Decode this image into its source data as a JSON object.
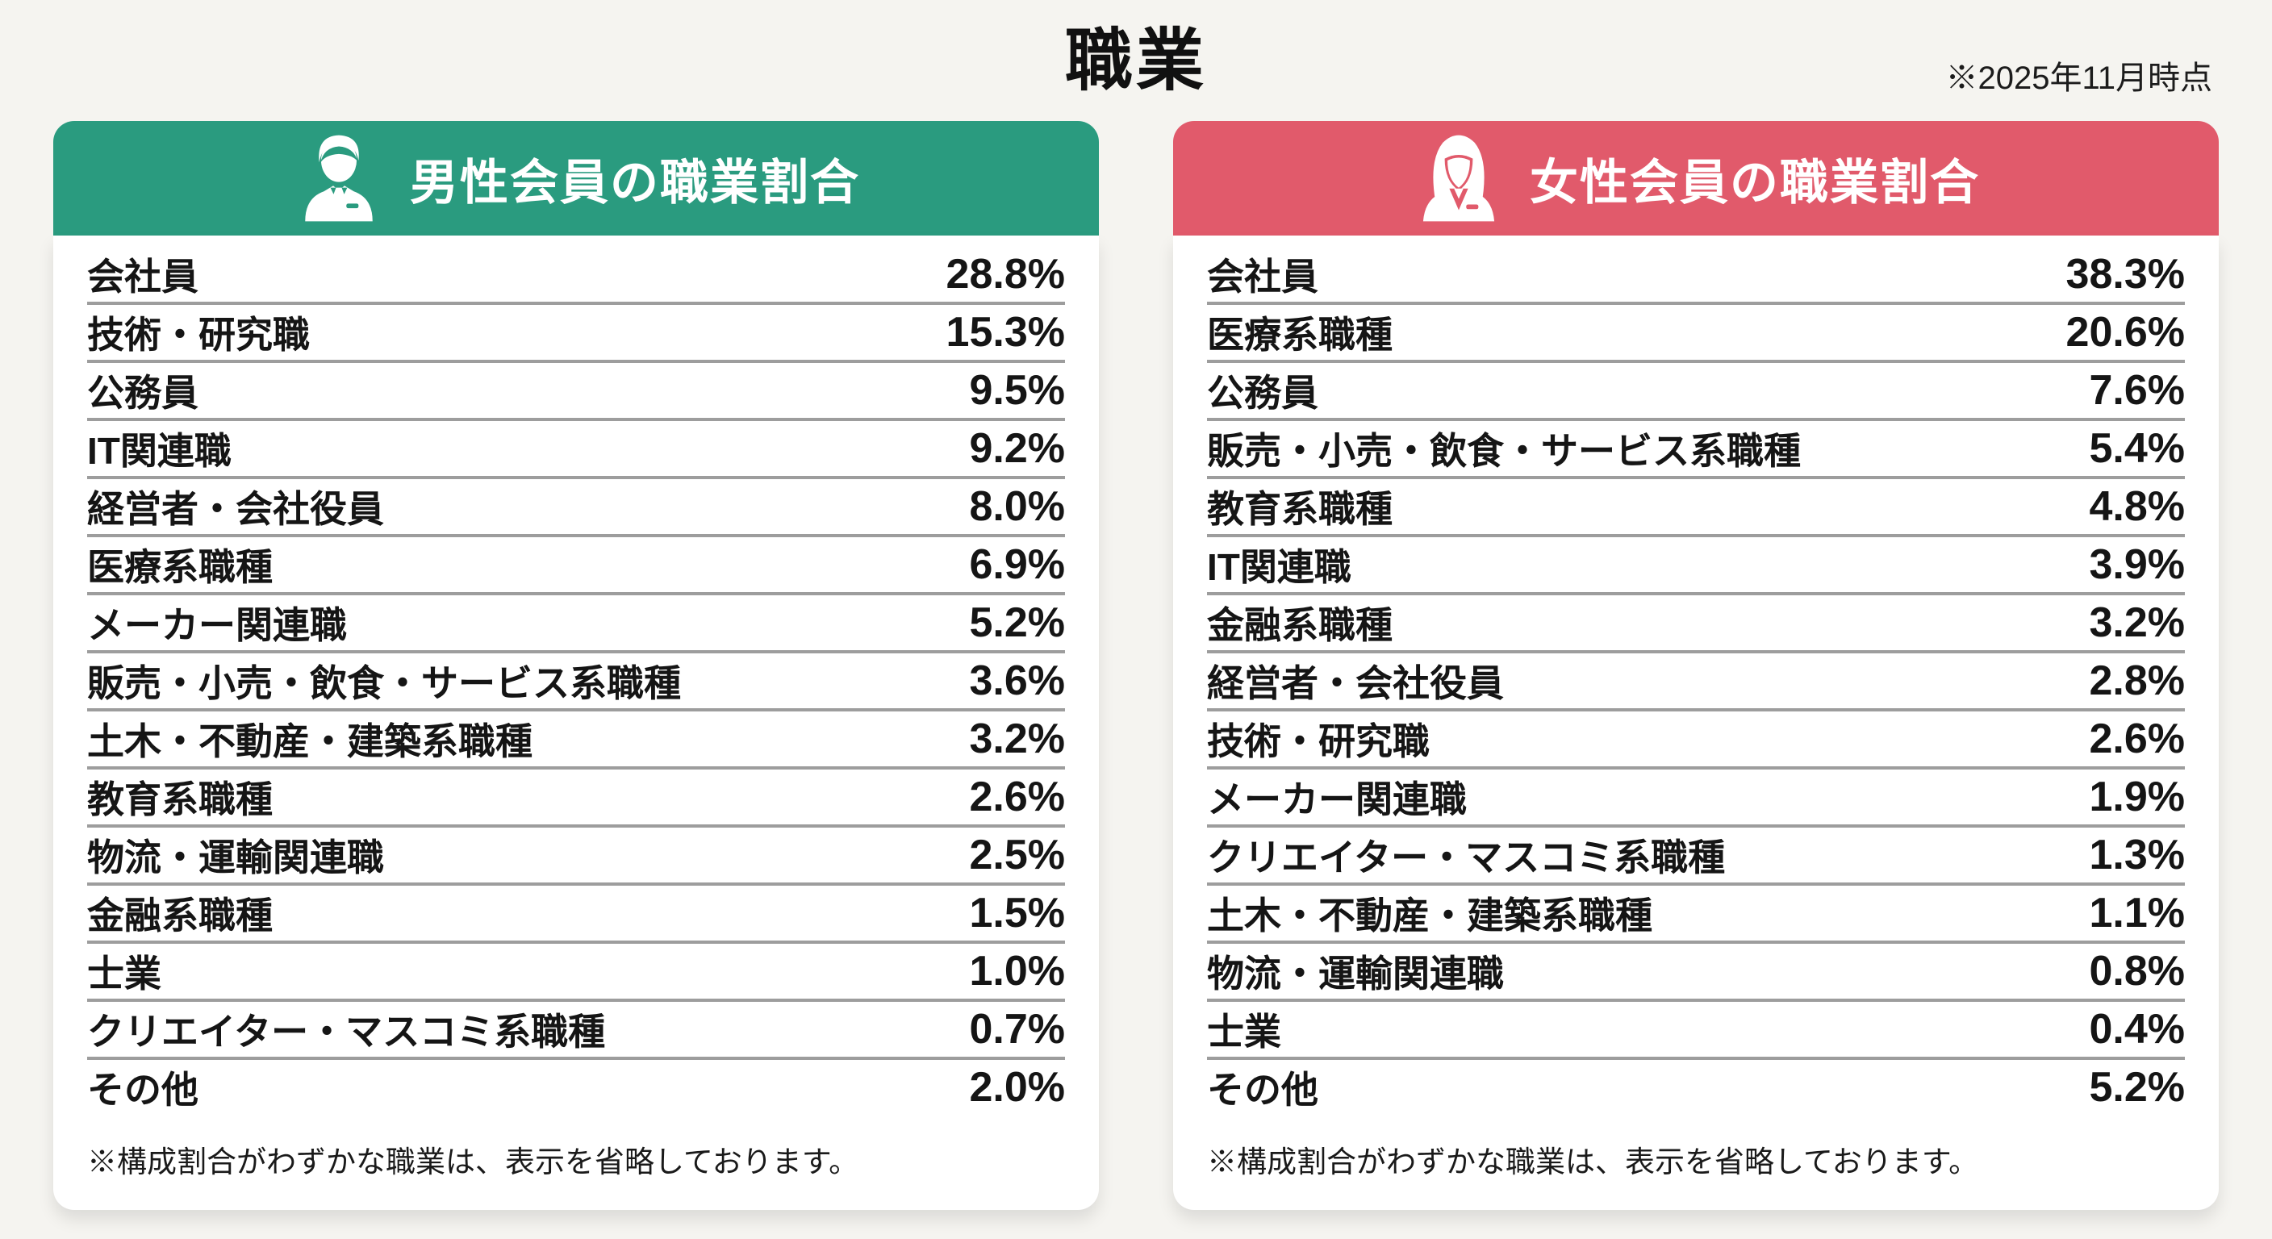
{
  "page": {
    "title": "職業",
    "note": "※2025年11月時点"
  },
  "panels": [
    {
      "id": "male",
      "header": "男性会員の職業割合",
      "icon": "businessman-icon",
      "accent": "#2a9b7f",
      "rows": [
        {
          "label": "会社員",
          "value": "28.8%"
        },
        {
          "label": "技術・研究職",
          "value": "15.3%"
        },
        {
          "label": "公務員",
          "value": "9.5%"
        },
        {
          "label": "IT関連職",
          "value": "9.2%"
        },
        {
          "label": "経営者・会社役員",
          "value": "8.0%"
        },
        {
          "label": "医療系職種",
          "value": "6.9%"
        },
        {
          "label": "メーカー関連職",
          "value": "5.2%"
        },
        {
          "label": "販売・小売・飲食・サービス系職種",
          "value": "3.6%"
        },
        {
          "label": "土木・不動産・建築系職種",
          "value": "3.2%"
        },
        {
          "label": "教育系職種",
          "value": "2.6%"
        },
        {
          "label": "物流・運輸関連職",
          "value": "2.5%"
        },
        {
          "label": "金融系職種",
          "value": "1.5%"
        },
        {
          "label": "士業",
          "value": "1.0%"
        },
        {
          "label": "クリエイター・マスコミ系職種",
          "value": "0.7%"
        },
        {
          "label": "その他",
          "value": "2.0%"
        }
      ],
      "footnote": "※構成割合がわずかな職業は、表示を省略しております。"
    },
    {
      "id": "female",
      "header": "女性会員の職業割合",
      "icon": "businesswoman-icon",
      "accent": "#e15a6b",
      "rows": [
        {
          "label": "会社員",
          "value": "38.3%"
        },
        {
          "label": "医療系職種",
          "value": "20.6%"
        },
        {
          "label": "公務員",
          "value": "7.6%"
        },
        {
          "label": "販売・小売・飲食・サービス系職種",
          "value": "5.4%"
        },
        {
          "label": "教育系職種",
          "value": "4.8%"
        },
        {
          "label": "IT関連職",
          "value": "3.9%"
        },
        {
          "label": "金融系職種",
          "value": "3.2%"
        },
        {
          "label": "経営者・会社役員",
          "value": "2.8%"
        },
        {
          "label": "技術・研究職",
          "value": "2.6%"
        },
        {
          "label": "メーカー関連職",
          "value": "1.9%"
        },
        {
          "label": "クリエイター・マスコミ系職種",
          "value": "1.3%"
        },
        {
          "label": "土木・不動産・建築系職種",
          "value": "1.1%"
        },
        {
          "label": "物流・運輸関連職",
          "value": "0.8%"
        },
        {
          "label": "士業",
          "value": "0.4%"
        },
        {
          "label": "その他",
          "value": "5.2%"
        }
      ],
      "footnote": "※構成割合がわずかな職業は、表示を省略しております。"
    }
  ],
  "chart_data": [
    {
      "type": "table",
      "title": "男性会員の職業割合",
      "categories": [
        "会社員",
        "技術・研究職",
        "公務員",
        "IT関連職",
        "経営者・会社役員",
        "医療系職種",
        "メーカー関連職",
        "販売・小売・飲食・サービス系職種",
        "土木・不動産・建築系職種",
        "教育系職種",
        "物流・運輸関連職",
        "金融系職種",
        "士業",
        "クリエイター・マスコミ系職種",
        "その他"
      ],
      "values": [
        28.8,
        15.3,
        9.5,
        9.2,
        8.0,
        6.9,
        5.2,
        3.6,
        3.2,
        2.6,
        2.5,
        1.5,
        1.0,
        0.7,
        2.0
      ],
      "unit": "%",
      "note": "※2025年11月時点"
    },
    {
      "type": "table",
      "title": "女性会員の職業割合",
      "categories": [
        "会社員",
        "医療系職種",
        "公務員",
        "販売・小売・飲食・サービス系職種",
        "教育系職種",
        "IT関連職",
        "金融系職種",
        "経営者・会社役員",
        "技術・研究職",
        "メーカー関連職",
        "クリエイター・マスコミ系職種",
        "土木・不動産・建築系職種",
        "物流・運輸関連職",
        "士業",
        "その他"
      ],
      "values": [
        38.3,
        20.6,
        7.6,
        5.4,
        4.8,
        3.9,
        3.2,
        2.8,
        2.6,
        1.9,
        1.3,
        1.1,
        0.8,
        0.4,
        5.2
      ],
      "unit": "%",
      "note": "※2025年11月時点"
    }
  ]
}
